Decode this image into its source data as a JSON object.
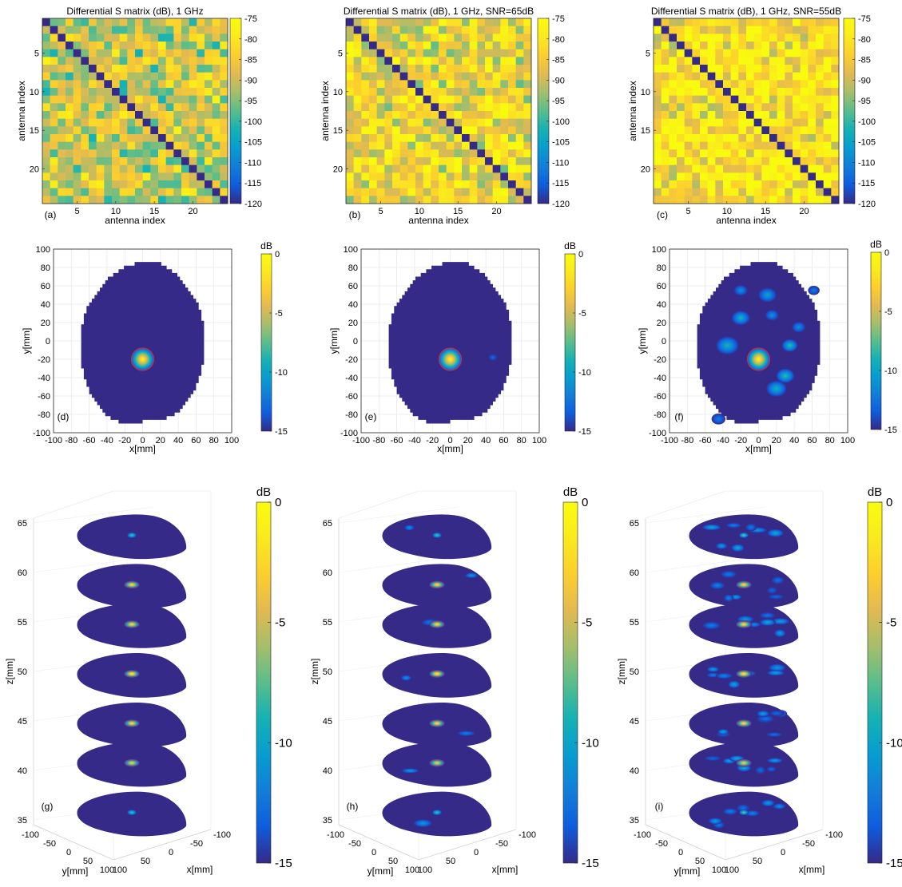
{
  "chart_data": [
    {
      "panel": "(a)",
      "type": "heatmap",
      "title": "Differential S matrix (dB), 1 GHz",
      "xlabel": "antenna index",
      "ylabel": "antenna index",
      "xticks": [
        "5",
        "10",
        "15",
        "20"
      ],
      "yticks": [
        "5",
        "10",
        "15",
        "20"
      ],
      "size": 24,
      "clim": [
        -120,
        -75
      ],
      "colorbar_ticks": [
        "-75",
        "-80",
        "-85",
        "-90",
        "-95",
        "-100",
        "-105",
        "-110",
        "-115",
        "-120"
      ],
      "diagonal_value": -120,
      "approx_offdiag_mean_db": -90,
      "seed": 11
    },
    {
      "panel": "(b)",
      "type": "heatmap",
      "title": "Differential S matrix (dB), 1 GHz, SNR=65dB",
      "xlabel": "antenna index",
      "ylabel": "antenna index",
      "xticks": [
        "5",
        "10",
        "15",
        "20"
      ],
      "yticks": [
        "5",
        "10",
        "15",
        "20"
      ],
      "size": 24,
      "clim": [
        -120,
        -75
      ],
      "colorbar_ticks": [
        "-75",
        "-80",
        "-85",
        "-90",
        "-95",
        "-100",
        "-105",
        "-110",
        "-115",
        "-120"
      ],
      "diagonal_value": -120,
      "approx_offdiag_mean_db": -85,
      "seed": 23
    },
    {
      "panel": "(c)",
      "type": "heatmap",
      "title": "Differential S matrix (dB), 1 GHz, SNR=55dB",
      "xlabel": "antenna index",
      "ylabel": "antenna index",
      "xticks": [
        "5",
        "10",
        "15",
        "20"
      ],
      "yticks": [
        "5",
        "10",
        "15",
        "20"
      ],
      "size": 24,
      "clim": [
        -120,
        -75
      ],
      "colorbar_ticks": [
        "-75",
        "-80",
        "-85",
        "-90",
        "-95",
        "-100",
        "-105",
        "-110",
        "-115",
        "-120"
      ],
      "diagonal_value": -120,
      "approx_offdiag_mean_db": -81,
      "seed": 37
    },
    {
      "panel": "(d)",
      "type": "heatmap",
      "xlabel": "x[mm]",
      "ylabel": "y[mm]",
      "xlim": [
        -100,
        100
      ],
      "ylim": [
        -100,
        100
      ],
      "xticks": [
        "-100",
        "-80",
        "-60",
        "-40",
        "-20",
        "0",
        "20",
        "40",
        "60",
        "80",
        "100"
      ],
      "yticks": [
        "100",
        "80",
        "60",
        "40",
        "20",
        "0",
        "-20",
        "-40",
        "-60",
        "-80",
        "-100"
      ],
      "colorbar_label": "dB",
      "clim": [
        -15,
        0
      ],
      "colorbar_ticks": [
        "0",
        "-5",
        "-10",
        "-15"
      ],
      "head_outline": {
        "cx": 0,
        "cy": 0,
        "rx": 70,
        "ry_top": 88,
        "ry_bottom": 90
      },
      "target": {
        "x": 0,
        "y": -20,
        "radius_mm": 10,
        "peak_db": 0
      },
      "artifacts": []
    },
    {
      "panel": "(e)",
      "type": "heatmap",
      "xlabel": "x[mm]",
      "ylabel": "y[mm]",
      "xlim": [
        -100,
        100
      ],
      "ylim": [
        -100,
        100
      ],
      "xticks": [
        "-100",
        "-80",
        "-60",
        "-40",
        "-20",
        "0",
        "20",
        "40",
        "60",
        "80",
        "100"
      ],
      "yticks": [
        "100",
        "80",
        "60",
        "40",
        "20",
        "0",
        "-20",
        "-40",
        "-60",
        "-80",
        "-100"
      ],
      "colorbar_label": "dB",
      "clim": [
        -15,
        0
      ],
      "colorbar_ticks": [
        "0",
        "-5",
        "-10",
        "-15"
      ],
      "head_outline": {
        "cx": 0,
        "cy": 0,
        "rx": 70,
        "ry_top": 88,
        "ry_bottom": 90
      },
      "target": {
        "x": 0,
        "y": -20,
        "radius_mm": 10,
        "peak_db": 0
      },
      "artifacts": [
        {
          "x": 48,
          "y": -18,
          "r": 4,
          "db": -13
        }
      ]
    },
    {
      "panel": "(f)",
      "type": "heatmap",
      "xlabel": "x[mm]",
      "ylabel": "y[mm]",
      "xlim": [
        -100,
        100
      ],
      "ylim": [
        -100,
        100
      ],
      "xticks": [
        "-100",
        "-80",
        "-60",
        "-40",
        "-20",
        "0",
        "20",
        "40",
        "60",
        "80",
        "100"
      ],
      "yticks": [
        "100",
        "80",
        "60",
        "40",
        "20",
        "0",
        "-20",
        "-40",
        "-60",
        "-80",
        "-100"
      ],
      "colorbar_label": "dB",
      "clim": [
        -15,
        0
      ],
      "colorbar_ticks": [
        "0",
        "-5",
        "-10",
        "-15"
      ],
      "head_outline": {
        "cx": 0,
        "cy": 0,
        "rx": 70,
        "ry_top": 88,
        "ry_bottom": 90
      },
      "target": {
        "x": 0,
        "y": -20,
        "radius_mm": 10,
        "peak_db": 0
      },
      "artifacts": [
        {
          "x": 10,
          "y": 50,
          "r": 8,
          "db": -10
        },
        {
          "x": -20,
          "y": 55,
          "r": 6,
          "db": -11
        },
        {
          "x": -20,
          "y": 25,
          "r": 8,
          "db": -9
        },
        {
          "x": 15,
          "y": 28,
          "r": 6,
          "db": -11
        },
        {
          "x": -35,
          "y": -5,
          "r": 10,
          "db": -9
        },
        {
          "x": 35,
          "y": -5,
          "r": 7,
          "db": -8
        },
        {
          "x": 30,
          "y": -38,
          "r": 8,
          "db": -8
        },
        {
          "x": 20,
          "y": -52,
          "r": 9,
          "db": -9
        },
        {
          "x": 62,
          "y": 55,
          "r": 5,
          "db": -12
        },
        {
          "x": -45,
          "y": -85,
          "r": 6,
          "db": -12
        },
        {
          "x": 45,
          "y": 15,
          "r": 6,
          "db": -11
        }
      ]
    },
    {
      "panel": "(g)",
      "type": "heatmap",
      "plot_kind": "3d-slices",
      "xlabel": "x[mm]",
      "ylabel": "y[mm]",
      "zlabel": "z[mm]",
      "xticks": [
        "-100",
        "-50",
        "0",
        "50",
        "100"
      ],
      "yticks": [
        "-100",
        "-50",
        "0",
        "50",
        "100"
      ],
      "zticks": [
        "65",
        "60",
        "55",
        "50",
        "45",
        "40",
        "35"
      ],
      "zlim": [
        35,
        65
      ],
      "slice_z": [
        36,
        41,
        45,
        50,
        55,
        59,
        64
      ],
      "colorbar_label": "dB",
      "clim": [
        -15,
        0
      ],
      "colorbar_ticks": [
        "0",
        "-5",
        "-10",
        "-15"
      ],
      "target_peak_db_by_slice": [
        -7,
        -2,
        -1,
        0,
        -1,
        -1,
        -7
      ],
      "artifacts_per_slice": 0
    },
    {
      "panel": "(h)",
      "type": "heatmap",
      "plot_kind": "3d-slices",
      "xlabel": "x[mm]",
      "ylabel": "y[mm]",
      "zlabel": "z[mm]",
      "xticks": [
        "-100",
        "-50",
        "0",
        "50",
        "100"
      ],
      "yticks": [
        "-100",
        "-50",
        "0",
        "50",
        "100"
      ],
      "zticks": [
        "65",
        "60",
        "55",
        "50",
        "45",
        "40",
        "35"
      ],
      "zlim": [
        35,
        65
      ],
      "slice_z": [
        36,
        41,
        45,
        50,
        55,
        59,
        64
      ],
      "colorbar_label": "dB",
      "clim": [
        -15,
        0
      ],
      "colorbar_ticks": [
        "0",
        "-5",
        "-10",
        "-15"
      ],
      "target_peak_db_by_slice": [
        -7,
        -2,
        -1,
        0,
        -1,
        -1,
        -7
      ],
      "artifacts_per_slice": 1
    },
    {
      "panel": "(i)",
      "type": "heatmap",
      "plot_kind": "3d-slices",
      "xlabel": "x[mm]",
      "ylabel": "y[mm]",
      "zlabel": "z[mm]",
      "xticks": [
        "-100",
        "-50",
        "0",
        "50",
        "100"
      ],
      "yticks": [
        "-100",
        "-50",
        "0",
        "50",
        "100"
      ],
      "zticks": [
        "65",
        "60",
        "55",
        "50",
        "45",
        "40",
        "35"
      ],
      "zlim": [
        35,
        65
      ],
      "slice_z": [
        36,
        41,
        45,
        50,
        55,
        59,
        64
      ],
      "colorbar_label": "dB",
      "clim": [
        -15,
        0
      ],
      "colorbar_ticks": [
        "0",
        "-5",
        "-10",
        "-15"
      ],
      "target_peak_db_by_slice": [
        -6,
        -2,
        -1,
        0,
        -1,
        -1,
        -6
      ],
      "artifacts_per_slice": 7
    }
  ]
}
